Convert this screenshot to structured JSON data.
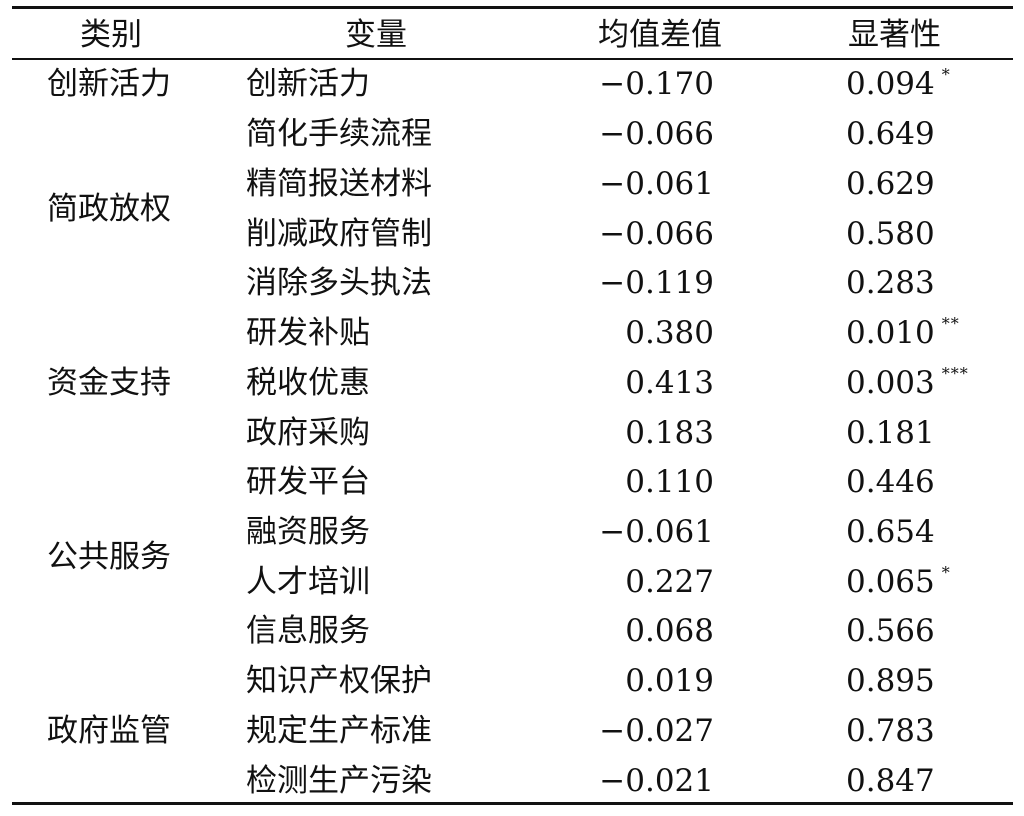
{
  "headers": {
    "category": "类别",
    "variable": "变量",
    "mean_diff": "均值差值",
    "significance": "显著性"
  },
  "categories": [
    {
      "label": "创新活力"
    },
    {
      "label": "简政放权"
    },
    {
      "label": "资金支持"
    },
    {
      "label": "公共服务"
    },
    {
      "label": "政府监管"
    }
  ],
  "rows": [
    {
      "variable": "创新活力",
      "mean_diff": "−0.170",
      "significance": "0.094",
      "stars": "*"
    },
    {
      "variable": "简化手续流程",
      "mean_diff": "−0.066",
      "significance": "0.649",
      "stars": ""
    },
    {
      "variable": "精简报送材料",
      "mean_diff": "−0.061",
      "significance": "0.629",
      "stars": ""
    },
    {
      "variable": "削减政府管制",
      "mean_diff": "−0.066",
      "significance": "0.580",
      "stars": ""
    },
    {
      "variable": "消除多头执法",
      "mean_diff": "−0.119",
      "significance": "0.283",
      "stars": ""
    },
    {
      "variable": "研发补贴",
      "mean_diff": "0.380",
      "significance": "0.010",
      "stars": "**"
    },
    {
      "variable": "税收优惠",
      "mean_diff": "0.413",
      "significance": "0.003",
      "stars": "***"
    },
    {
      "variable": "政府采购",
      "mean_diff": "0.183",
      "significance": "0.181",
      "stars": ""
    },
    {
      "variable": "研发平台",
      "mean_diff": "0.110",
      "significance": "0.446",
      "stars": ""
    },
    {
      "variable": "融资服务",
      "mean_diff": "−0.061",
      "significance": "0.654",
      "stars": ""
    },
    {
      "variable": "人才培训",
      "mean_diff": "0.227",
      "significance": "0.065",
      "stars": "*"
    },
    {
      "variable": "信息服务",
      "mean_diff": "0.068",
      "significance": "0.566",
      "stars": ""
    },
    {
      "variable": "知识产权保护",
      "mean_diff": "0.019",
      "significance": "0.895",
      "stars": ""
    },
    {
      "variable": "规定生产标准",
      "mean_diff": "−0.027",
      "significance": "0.783",
      "stars": ""
    },
    {
      "variable": "检测生产污染",
      "mean_diff": "−0.021",
      "significance": "0.847",
      "stars": ""
    }
  ]
}
